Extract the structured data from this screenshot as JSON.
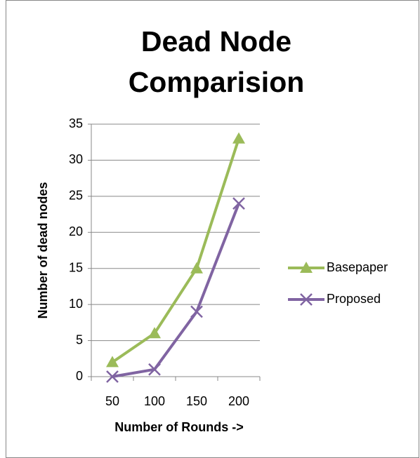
{
  "chart_data": {
    "type": "line",
    "title": "Dead Node Comparision",
    "x_label": "Number of Rounds ->",
    "y_label": "Number of dead nodes",
    "categories": [
      "50",
      "100",
      "150",
      "200"
    ],
    "series": [
      {
        "name": "Basepaper",
        "color": "#9bbb59",
        "marker": "triangle",
        "values": [
          2,
          6,
          15,
          33
        ]
      },
      {
        "name": "Proposed",
        "color": "#8064a2",
        "marker": "x",
        "values": [
          0,
          1,
          9,
          24
        ]
      }
    ],
    "ylim": [
      0,
      35
    ],
    "yticks": [
      0,
      5,
      10,
      15,
      20,
      25,
      30,
      35
    ],
    "grid": true,
    "legend": "right"
  }
}
